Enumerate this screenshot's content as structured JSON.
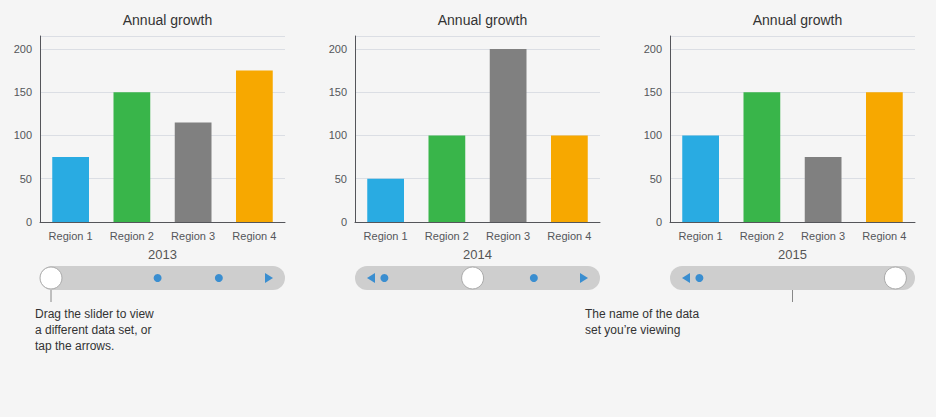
{
  "chart_data": [
    {
      "type": "bar",
      "title": "Annual growth",
      "xlabel": "2013",
      "categories": [
        "Region 1",
        "Region 2",
        "Region 3",
        "Region 4"
      ],
      "values": [
        75,
        150,
        115,
        175
      ],
      "colors": [
        "#29ABE2",
        "#39B54A",
        "#808080",
        "#F7A800"
      ],
      "ylim": [
        0,
        215
      ],
      "yticks": [
        0,
        50,
        100,
        150,
        200
      ],
      "grid": true,
      "annotations": [
        "Drag the slider to view\na different data set, or\ntap the arrows."
      ]
    },
    {
      "type": "bar",
      "title": "Annual growth",
      "xlabel": "2014",
      "categories": [
        "Region 1",
        "Region 2",
        "Region 3",
        "Region 4"
      ],
      "values": [
        50,
        100,
        200,
        100
      ],
      "colors": [
        "#29ABE2",
        "#39B54A",
        "#808080",
        "#F7A800"
      ],
      "ylim": [
        0,
        215
      ],
      "yticks": [
        0,
        50,
        100,
        150,
        200
      ],
      "grid": true
    },
    {
      "type": "bar",
      "title": "Annual growth",
      "xlabel": "2015",
      "categories": [
        "Region 1",
        "Region 2",
        "Region 3",
        "Region 4"
      ],
      "values": [
        100,
        150,
        75,
        150
      ],
      "colors": [
        "#29ABE2",
        "#39B54A",
        "#808080",
        "#F7A800"
      ],
      "ylim": [
        0,
        215
      ],
      "yticks": [
        0,
        50,
        100,
        150,
        200
      ],
      "grid": true,
      "annotations": [
        "The name of the data\nset you’re viewing"
      ]
    }
  ]
}
